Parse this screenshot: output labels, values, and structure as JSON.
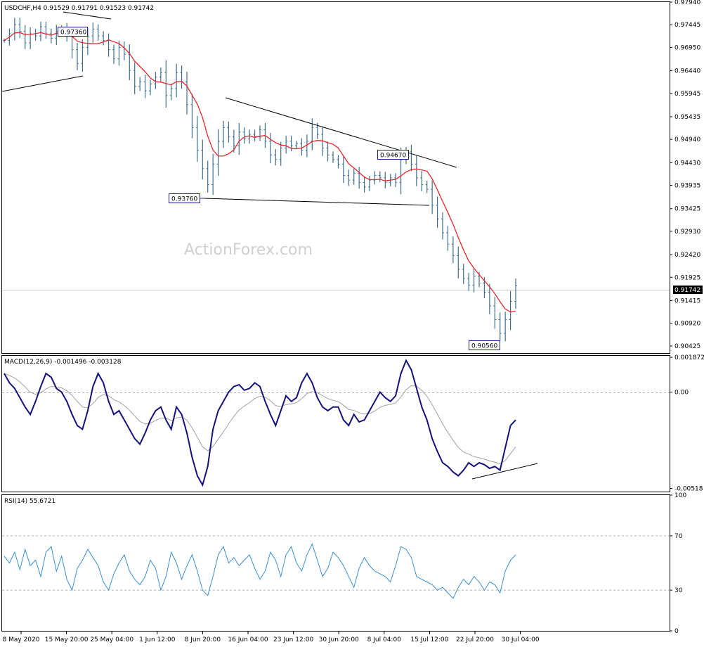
{
  "price_panel": {
    "header": "USDCHF,H4  0.91529 0.91791 0.91523 0.91742",
    "current_price_label": "0.91742",
    "watermark": "ActionForex.com"
  },
  "macd_panel": {
    "header": "MACD(12,26,9) -0.001496 -0.003128"
  },
  "rsi_panel": {
    "header": "RSI(14) 55.6721"
  },
  "colors": {
    "price_bars": "#3d6e8f",
    "moving_average": "#e8262a",
    "macd_line": "#12127a",
    "macd_signal": "#a0a0a0",
    "rsi_line": "#3a8fd8",
    "label_box": "#1a1a8c",
    "trendline": "#000000",
    "level_line": "#c8c8c8"
  },
  "chart_data": [
    {
      "type": "line",
      "panel": "price",
      "title": "USDCHF,H4",
      "ylim": [
        0.9027,
        0.9794
      ],
      "yticks": [
        0.9794,
        0.97445,
        0.9695,
        0.9644,
        0.95945,
        0.95435,
        0.9494,
        0.9443,
        0.93935,
        0.93425,
        0.9293,
        0.9242,
        0.91925,
        0.91415,
        0.9092,
        0.90425
      ],
      "x_labels": [
        "8 May 2020",
        "15 May 20:00",
        "25 May 04:00",
        "1 Jun 12:00",
        "8 Jun 20:00",
        "16 Jun 04:00",
        "23 Jun 12:00",
        "30 Jun 20:00",
        "8 Jul 04:00",
        "15 Jul 12:00",
        "22 Jul 20:00",
        "30 Jul 04:00"
      ],
      "series": [
        {
          "values": [
            0.971,
            0.9725,
            0.9745,
            0.973,
            0.9705,
            0.9725,
            0.972,
            0.974,
            0.9725,
            0.9715,
            0.973,
            0.9736,
            0.972,
            0.969,
            0.966,
            0.9695,
            0.972,
            0.9735,
            0.972,
            0.971,
            0.969,
            0.967,
            0.9695,
            0.968,
            0.9645,
            0.961,
            0.962,
            0.96,
            0.9615,
            0.963,
            0.964,
            0.959,
            0.9605,
            0.964,
            0.962,
            0.957,
            0.952,
            0.947,
            0.943,
            0.9395,
            0.944,
            0.949,
            0.952,
            0.95,
            0.948,
            0.951,
            0.9495,
            0.9505,
            0.95,
            0.9515,
            0.949,
            0.946,
            0.945,
            0.9475,
            0.949,
            0.948,
            0.9485,
            0.947,
            0.949,
            0.952,
            0.9505,
            0.9475,
            0.946,
            0.945,
            0.944,
            0.9415,
            0.9405,
            0.942,
            0.94,
            0.939,
            0.9405,
            0.9415,
            0.941,
            0.94,
            0.941,
            0.94,
            0.945,
            0.9467,
            0.944,
            0.941,
            0.9395,
            0.9385,
            0.935,
            0.932,
            0.929,
            0.9265,
            0.924,
            0.921,
            0.919,
            0.9175,
            0.9195,
            0.918,
            0.916,
            0.913,
            0.91,
            0.907,
            0.91,
            0.914,
            0.9174
          ],
          "smoothing": "moving_average"
        }
      ],
      "annotations": [
        "0.97360",
        "0.93760",
        "0.94670",
        "0.90560"
      ]
    },
    {
      "type": "line",
      "panel": "macd",
      "title": "MACD(12,26,9)",
      "ylim": [
        -0.00535,
        0.00195
      ],
      "yticks": [
        0.001872,
        0.0,
        -0.00518
      ],
      "series": [
        {
          "values": [
            0.001,
            0.0005,
            0.0002,
            -0.0003,
            -0.0008,
            -0.0012,
            -0.0005,
            0.0003,
            0.001,
            0.0008,
            0.0002,
            0.0,
            -0.0005,
            -0.0012,
            -0.0018,
            -0.002,
            -0.001,
            0.0003,
            0.001,
            0.0005,
            -0.0005,
            -0.0012,
            -0.001,
            -0.0015,
            -0.002,
            -0.0025,
            -0.0028,
            -0.0022,
            -0.0015,
            -0.001,
            -0.0008,
            -0.0015,
            -0.002,
            -0.0008,
            -0.0012,
            -0.0022,
            -0.0035,
            -0.0045,
            -0.005,
            -0.004,
            -0.002,
            -0.001,
            -0.0005,
            0.0,
            0.0003,
            0.0004,
            0.0001,
            0.0002,
            0.0005,
            0.0003,
            -0.0005,
            -0.0012,
            -0.0018,
            -0.001,
            -0.0002,
            -0.0005,
            -0.0003,
            0.0005,
            0.001,
            0.0005,
            -0.0003,
            -0.0008,
            -0.001,
            -0.0008,
            -0.0008,
            -0.0015,
            -0.0018,
            -0.0012,
            -0.0016,
            -0.0015,
            -0.001,
            -0.0005,
            0.0,
            -0.0003,
            -0.0005,
            -0.0002,
            0.001,
            0.0017,
            0.0012,
            0.0002,
            -0.0008,
            -0.0015,
            -0.0025,
            -0.0032,
            -0.0038,
            -0.004,
            -0.0043,
            -0.0045,
            -0.0042,
            -0.0038,
            -0.004,
            -0.0038,
            -0.0039,
            -0.0041,
            -0.004,
            -0.0042,
            -0.003,
            -0.0018,
            -0.0015
          ]
        }
      ]
    },
    {
      "type": "line",
      "panel": "rsi",
      "title": "RSI(14)",
      "ylim": [
        0,
        100
      ],
      "yticks": [
        100,
        70,
        30,
        0
      ],
      "series": [
        {
          "values": [
            55,
            50,
            58,
            45,
            60,
            48,
            52,
            40,
            58,
            62,
            44,
            55,
            38,
            30,
            46,
            52,
            60,
            54,
            48,
            36,
            30,
            42,
            50,
            56,
            44,
            38,
            34,
            40,
            52,
            46,
            30,
            40,
            58,
            50,
            38,
            48,
            56,
            44,
            30,
            26,
            40,
            56,
            62,
            50,
            54,
            48,
            52,
            56,
            46,
            38,
            44,
            58,
            52,
            40,
            56,
            62,
            50,
            44,
            56,
            64,
            52,
            40,
            46,
            58,
            54,
            48,
            40,
            32,
            46,
            54,
            48,
            44,
            42,
            40,
            36,
            48,
            62,
            60,
            54,
            40,
            38,
            36,
            34,
            30,
            32,
            28,
            24,
            32,
            38,
            34,
            40,
            36,
            30,
            36,
            34,
            28,
            44,
            52,
            56
          ]
        }
      ],
      "levels": [
        70,
        30
      ]
    }
  ]
}
